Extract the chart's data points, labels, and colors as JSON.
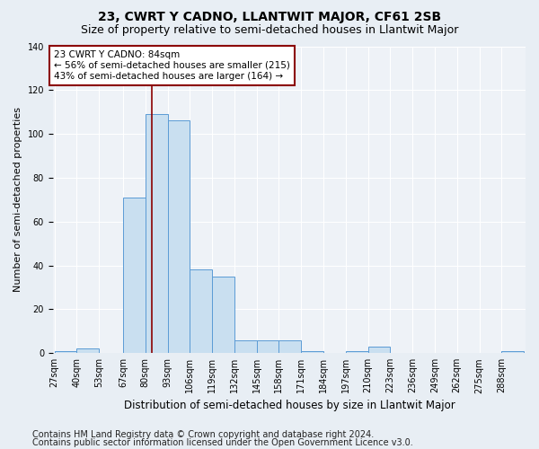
{
  "title": "23, CWRT Y CADNO, LLANTWIT MAJOR, CF61 2SB",
  "subtitle": "Size of property relative to semi-detached houses in Llantwit Major",
  "xlabel": "Distribution of semi-detached houses by size in Llantwit Major",
  "ylabel": "Number of semi-detached properties",
  "bin_labels": [
    "27sqm",
    "40sqm",
    "53sqm",
    "67sqm",
    "80sqm",
    "93sqm",
    "106sqm",
    "119sqm",
    "132sqm",
    "145sqm",
    "158sqm",
    "171sqm",
    "184sqm",
    "197sqm",
    "210sqm",
    "223sqm",
    "236sqm",
    "249sqm",
    "262sqm",
    "275sqm",
    "288sqm"
  ],
  "bin_lefts": [
    27,
    40,
    53,
    67,
    80,
    93,
    106,
    119,
    132,
    145,
    158,
    171,
    184,
    197,
    210,
    223,
    236,
    249,
    262,
    275,
    288
  ],
  "bin_width": 13,
  "bar_heights": [
    1,
    2,
    0,
    71,
    109,
    106,
    38,
    35,
    6,
    6,
    6,
    1,
    0,
    1,
    3,
    0,
    0,
    0,
    0,
    0,
    1
  ],
  "bar_color": "#c9dff0",
  "bar_edge_color": "#5b9bd5",
  "property_sqm": 84,
  "vline_color": "#8b0000",
  "annotation_text": "23 CWRT Y CADNO: 84sqm\n← 56% of semi-detached houses are smaller (215)\n43% of semi-detached houses are larger (164) →",
  "annotation_box_color": "white",
  "annotation_box_edge_color": "#8b0000",
  "ylim": [
    0,
    140
  ],
  "yticks": [
    0,
    20,
    40,
    60,
    80,
    100,
    120,
    140
  ],
  "footer_line1": "Contains HM Land Registry data © Crown copyright and database right 2024.",
  "footer_line2": "Contains public sector information licensed under the Open Government Licence v3.0.",
  "background_color": "#e8eef4",
  "plot_background_color": "#eef2f7",
  "grid_color": "#ffffff",
  "title_fontsize": 10,
  "subtitle_fontsize": 9,
  "ylabel_fontsize": 8,
  "xlabel_fontsize": 8.5,
  "tick_fontsize": 7,
  "annotation_fontsize": 7.5,
  "footer_fontsize": 7
}
